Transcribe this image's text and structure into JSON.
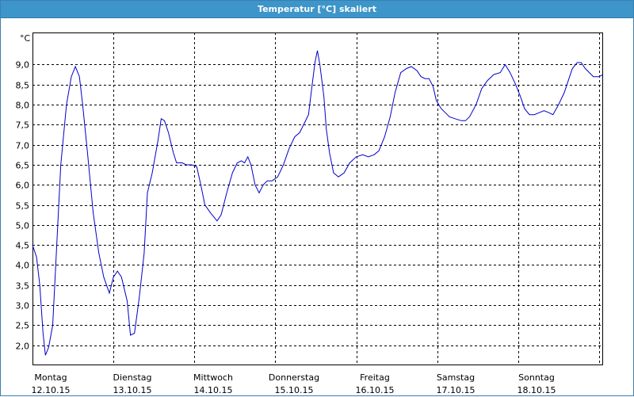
{
  "window": {
    "title": "Temperatur [°C] skaliert"
  },
  "chart_data": {
    "type": "line",
    "title": "Temperatur [°C] skaliert",
    "ylabel": "°C",
    "xlabel": "",
    "ylim": [
      1.5,
      9.8
    ],
    "xlim": [
      0,
      7.05
    ],
    "yticks": [
      "2,0",
      "2,5",
      "3,0",
      "3,5",
      "4,0",
      "4,5",
      "5,0",
      "5,5",
      "6,0",
      "6,5",
      "7,0",
      "7,5",
      "8,0",
      "8,5",
      "9,0"
    ],
    "ytick_values": [
      2.0,
      2.5,
      3.0,
      3.5,
      4.0,
      4.5,
      5.0,
      5.5,
      6.0,
      6.5,
      7.0,
      7.5,
      8.0,
      8.5,
      9.0
    ],
    "xticks": [
      {
        "day": "Montag",
        "date": "12.10.15"
      },
      {
        "day": "Dienstag",
        "date": "13.10.15"
      },
      {
        "day": "Mittwoch",
        "date": "14.10.15"
      },
      {
        "day": "Donnerstag",
        "date": "15.10.15"
      },
      {
        "day": "Freitag",
        "date": "16.10.15"
      },
      {
        "day": "Samstag",
        "date": "17.10.15"
      },
      {
        "day": "Sonntag",
        "date": "18.10.15"
      }
    ],
    "grid": true,
    "series": [
      {
        "color": "#0000cc",
        "points": [
          [
            0.0,
            4.5
          ],
          [
            0.05,
            4.2
          ],
          [
            0.09,
            3.5
          ],
          [
            0.13,
            2.3
          ],
          [
            0.16,
            1.75
          ],
          [
            0.2,
            1.95
          ],
          [
            0.25,
            2.5
          ],
          [
            0.3,
            4.5
          ],
          [
            0.35,
            6.5
          ],
          [
            0.42,
            8.0
          ],
          [
            0.48,
            8.7
          ],
          [
            0.53,
            8.95
          ],
          [
            0.58,
            8.7
          ],
          [
            0.62,
            8.0
          ],
          [
            0.68,
            6.8
          ],
          [
            0.75,
            5.3
          ],
          [
            0.82,
            4.3
          ],
          [
            0.88,
            3.7
          ],
          [
            0.95,
            3.3
          ],
          [
            1.0,
            3.7
          ],
          [
            1.05,
            3.85
          ],
          [
            1.1,
            3.7
          ],
          [
            1.17,
            3.1
          ],
          [
            1.21,
            2.25
          ],
          [
            1.26,
            2.3
          ],
          [
            1.32,
            3.2
          ],
          [
            1.38,
            4.3
          ],
          [
            1.42,
            5.8
          ],
          [
            1.48,
            6.3
          ],
          [
            1.55,
            7.1
          ],
          [
            1.59,
            7.65
          ],
          [
            1.63,
            7.6
          ],
          [
            1.68,
            7.3
          ],
          [
            1.74,
            6.8
          ],
          [
            1.78,
            6.55
          ],
          [
            1.85,
            6.55
          ],
          [
            1.9,
            6.5
          ],
          [
            1.97,
            6.5
          ],
          [
            2.03,
            6.45
          ],
          [
            2.08,
            6.0
          ],
          [
            2.13,
            5.5
          ],
          [
            2.2,
            5.3
          ],
          [
            2.28,
            5.1
          ],
          [
            2.33,
            5.25
          ],
          [
            2.4,
            5.8
          ],
          [
            2.47,
            6.3
          ],
          [
            2.53,
            6.55
          ],
          [
            2.58,
            6.6
          ],
          [
            2.62,
            6.55
          ],
          [
            2.66,
            6.7
          ],
          [
            2.7,
            6.5
          ],
          [
            2.75,
            6.0
          ],
          [
            2.8,
            5.8
          ],
          [
            2.85,
            6.0
          ],
          [
            2.9,
            6.1
          ],
          [
            2.96,
            6.1
          ],
          [
            3.03,
            6.2
          ],
          [
            3.1,
            6.5
          ],
          [
            3.17,
            6.9
          ],
          [
            3.24,
            7.2
          ],
          [
            3.3,
            7.3
          ],
          [
            3.35,
            7.5
          ],
          [
            3.41,
            7.75
          ],
          [
            3.45,
            8.4
          ],
          [
            3.49,
            9.05
          ],
          [
            3.52,
            9.35
          ],
          [
            3.55,
            9.0
          ],
          [
            3.6,
            8.2
          ],
          [
            3.63,
            7.4
          ],
          [
            3.67,
            6.8
          ],
          [
            3.72,
            6.3
          ],
          [
            3.78,
            6.2
          ],
          [
            3.85,
            6.3
          ],
          [
            3.92,
            6.55
          ],
          [
            4.0,
            6.7
          ],
          [
            4.08,
            6.75
          ],
          [
            4.15,
            6.7
          ],
          [
            4.22,
            6.75
          ],
          [
            4.28,
            6.85
          ],
          [
            4.35,
            7.2
          ],
          [
            4.42,
            7.7
          ],
          [
            4.48,
            8.3
          ],
          [
            4.55,
            8.8
          ],
          [
            4.62,
            8.9
          ],
          [
            4.68,
            8.95
          ],
          [
            4.75,
            8.85
          ],
          [
            4.8,
            8.7
          ],
          [
            4.85,
            8.65
          ],
          [
            4.9,
            8.65
          ],
          [
            4.95,
            8.45
          ],
          [
            4.99,
            8.1
          ],
          [
            5.05,
            7.9
          ],
          [
            5.1,
            7.8
          ],
          [
            5.15,
            7.7
          ],
          [
            5.22,
            7.65
          ],
          [
            5.3,
            7.6
          ],
          [
            5.35,
            7.6
          ],
          [
            5.4,
            7.7
          ],
          [
            5.48,
            8.0
          ],
          [
            5.55,
            8.4
          ],
          [
            5.62,
            8.6
          ],
          [
            5.7,
            8.75
          ],
          [
            5.78,
            8.8
          ],
          [
            5.84,
            9.0
          ],
          [
            5.9,
            8.8
          ],
          [
            5.97,
            8.5
          ],
          [
            6.03,
            8.2
          ],
          [
            6.08,
            7.9
          ],
          [
            6.14,
            7.75
          ],
          [
            6.2,
            7.75
          ],
          [
            6.26,
            7.8
          ],
          [
            6.32,
            7.85
          ],
          [
            6.38,
            7.8
          ],
          [
            6.43,
            7.75
          ],
          [
            6.5,
            8.0
          ],
          [
            6.57,
            8.3
          ],
          [
            6.62,
            8.6
          ],
          [
            6.67,
            8.9
          ],
          [
            6.73,
            9.05
          ],
          [
            6.78,
            9.05
          ],
          [
            6.83,
            8.9
          ],
          [
            6.88,
            8.8
          ],
          [
            6.93,
            8.7
          ],
          [
            7.0,
            8.7
          ],
          [
            7.05,
            8.75
          ]
        ]
      }
    ]
  }
}
